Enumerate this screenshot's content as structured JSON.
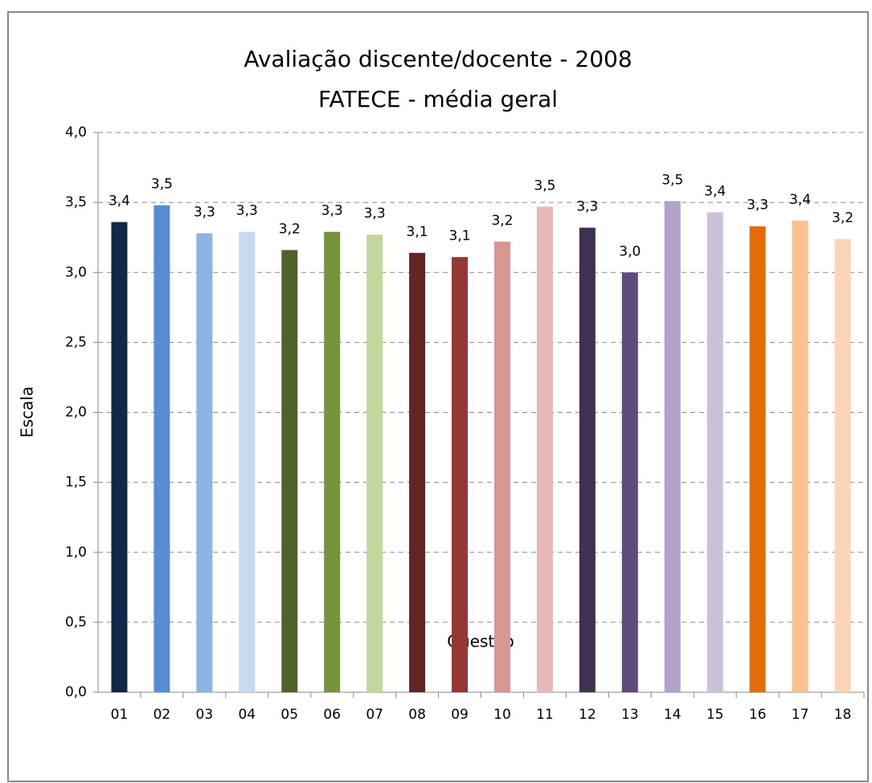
{
  "chart_data": {
    "type": "bar",
    "title": "Avaliação discente/docente - 2008",
    "subtitle": "FATECE - média geral",
    "y_label": "Escala",
    "x_label": "Questão",
    "categories": [
      "01",
      "02",
      "03",
      "04",
      "05",
      "06",
      "07",
      "08",
      "09",
      "10",
      "11",
      "12",
      "13",
      "14",
      "15",
      "16",
      "17",
      "18"
    ],
    "values": [
      3.36,
      3.48,
      3.28,
      3.29,
      3.16,
      3.29,
      3.27,
      3.14,
      3.11,
      3.22,
      3.47,
      3.32,
      3.0,
      3.51,
      3.43,
      3.33,
      3.37,
      3.24
    ],
    "value_labels": [
      "3,4",
      "3,5",
      "3,3",
      "3,3",
      "3,2",
      "3,3",
      "3,3",
      "3,1",
      "3,1",
      "3,2",
      "3,5",
      "3,3",
      "3,0",
      "3,5",
      "3,4",
      "3,3",
      "3,4",
      "3,2"
    ],
    "colors": [
      "#12284a",
      "#548dd4",
      "#8db3e2",
      "#c6d9f1",
      "#4f6228",
      "#77933c",
      "#c3d69b",
      "#632523",
      "#953735",
      "#d99594",
      "#e6b9b8",
      "#403151",
      "#604a7b",
      "#b2a2c7",
      "#ccc1da",
      "#e36c09",
      "#fac08f",
      "#fbd5b5"
    ],
    "ylim": [
      0,
      4
    ],
    "yticks": [
      {
        "value": 0,
        "label": "0,0"
      },
      {
        "value": 0.5,
        "label": "0,5"
      },
      {
        "value": 1,
        "label": "1,0"
      },
      {
        "value": 1.5,
        "label": "1,5"
      },
      {
        "value": 2,
        "label": "2,0"
      },
      {
        "value": 2.5,
        "label": "2,5"
      },
      {
        "value": 3,
        "label": "3,0"
      },
      {
        "value": 3.5,
        "label": "3,5"
      },
      {
        "value": 4,
        "label": "4,0"
      }
    ],
    "grid": true
  }
}
